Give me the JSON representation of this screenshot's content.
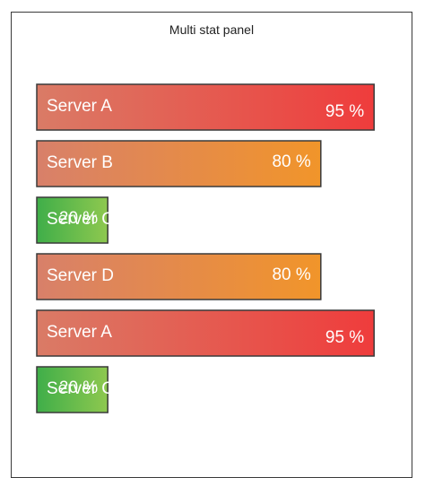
{
  "panel": {
    "title": "Multi stat panel"
  },
  "chart_data": {
    "type": "bar",
    "orientation": "horizontal",
    "title": "Multi stat panel",
    "categories": [
      "Server A",
      "Server B",
      "Server C",
      "Server D",
      "Server A",
      "Server C"
    ],
    "values": [
      95,
      80,
      20,
      80,
      95,
      20
    ],
    "value_labels": [
      "95 %",
      "80 %",
      "20 %",
      "80 %",
      "95 %",
      "20 %"
    ],
    "unit": "%",
    "xlim": [
      0,
      100
    ],
    "thresholds": [
      {
        "min": 0,
        "max": 50,
        "color_start": "#3fae49",
        "color_end": "#8ec84f"
      },
      {
        "min": 50,
        "max": 90,
        "color_start": "#d8806a",
        "color_end": "#f1952a"
      },
      {
        "min": 90,
        "max": 100,
        "color_start": "#da7b66",
        "color_end": "#ef3c3c"
      }
    ],
    "grid": false
  }
}
